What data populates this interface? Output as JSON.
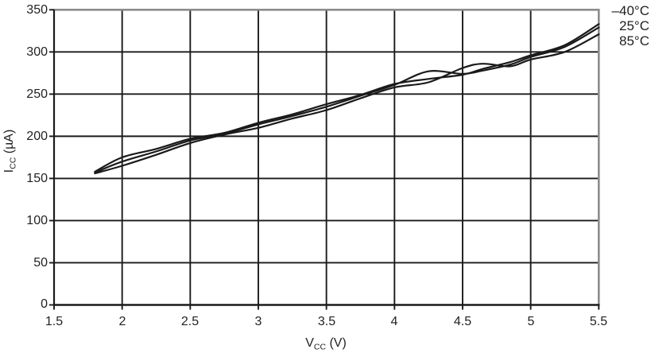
{
  "chart_data": {
    "type": "line",
    "title": "",
    "xlabel": "VCC (V)",
    "ylabel": "ICC (µA)",
    "xlabel_parts": {
      "main": "V",
      "sub": "CC",
      "unit": " (V)"
    },
    "ylabel_parts": {
      "main": "I",
      "sub": "CC",
      "unit": " (µA)"
    },
    "xlim": [
      1.5,
      5.5
    ],
    "ylim": [
      0,
      350
    ],
    "grid": true,
    "legend_position": "top-right-outside",
    "xticklabels": [
      "1.5",
      "2",
      "2.5",
      "3",
      "3.5",
      "4",
      "4.5",
      "5",
      "5.5"
    ],
    "yticklabels_top_to_bottom": [
      "350",
      "300",
      "250",
      "200",
      "150",
      "100",
      "50",
      "0"
    ],
    "x": [
      1.8,
      2.0,
      2.25,
      2.5,
      2.75,
      3.0,
      3.25,
      3.5,
      3.75,
      4.0,
      4.25,
      4.5,
      4.65,
      4.85,
      5.0,
      5.25,
      5.5
    ],
    "series": [
      {
        "name": "–40°C",
        "color": "#1a1a1a",
        "values": [
          158,
          175,
          185,
          197,
          204,
          216,
          226,
          238,
          249,
          262,
          268,
          273,
          280,
          288,
          296,
          308,
          333
        ]
      },
      {
        "name": "25°C",
        "color": "#1a1a1a",
        "values": [
          157,
          170,
          182,
          195,
          203,
          214,
          224,
          235,
          248,
          261,
          277,
          274,
          278,
          285,
          294,
          306,
          329
        ]
      },
      {
        "name": "85°C",
        "color": "#1a1a1a",
        "values": [
          156,
          165,
          178,
          192,
          202,
          210,
          221,
          231,
          245,
          258,
          264,
          281,
          286,
          283,
          291,
          300,
          321
        ]
      }
    ]
  },
  "colors": {
    "curve": "#1a1a1a",
    "gridline": "#1a1a1a",
    "axis": "#1a1a1a",
    "plot_border_gray": "#8c8c8c",
    "text": "#231f20"
  }
}
